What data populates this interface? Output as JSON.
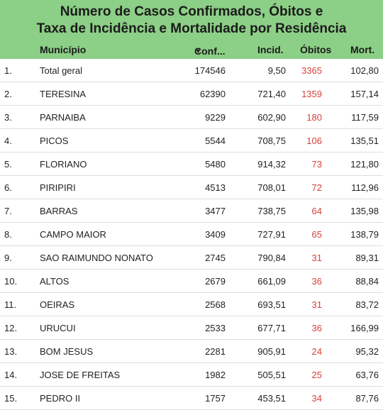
{
  "header": {
    "title_line1": "Número de Casos Confirmados, Óbitos e",
    "title_line2": "Taxa de Incidência e Mortalidade por Residência"
  },
  "columns": {
    "municipio": "Município",
    "confirmados": "Conf...",
    "incidencia": "Incid.",
    "obitos": "Óbitos",
    "mortalidade": "Mort."
  },
  "colors": {
    "header_bg": "#8ccf86",
    "obitos_text": "#d9403a"
  },
  "rows": [
    {
      "rank": "1.",
      "municipio": "Total geral",
      "confirmados": "174546",
      "incidencia": "9,50",
      "obitos": "3365",
      "mortalidade": "102,80"
    },
    {
      "rank": "2.",
      "municipio": "TERESINA",
      "confirmados": "62390",
      "incidencia": "721,40",
      "obitos": "1359",
      "mortalidade": "157,14"
    },
    {
      "rank": "3.",
      "municipio": "PARNAIBA",
      "confirmados": "9229",
      "incidencia": "602,90",
      "obitos": "180",
      "mortalidade": "117,59"
    },
    {
      "rank": "4.",
      "municipio": "PICOS",
      "confirmados": "5544",
      "incidencia": "708,75",
      "obitos": "106",
      "mortalidade": "135,51"
    },
    {
      "rank": "5.",
      "municipio": "FLORIANO",
      "confirmados": "5480",
      "incidencia": "914,32",
      "obitos": "73",
      "mortalidade": "121,80"
    },
    {
      "rank": "6.",
      "municipio": "PIRIPIRI",
      "confirmados": "4513",
      "incidencia": "708,01",
      "obitos": "72",
      "mortalidade": "112,96"
    },
    {
      "rank": "7.",
      "municipio": "BARRAS",
      "confirmados": "3477",
      "incidencia": "738,75",
      "obitos": "64",
      "mortalidade": "135,98"
    },
    {
      "rank": "8.",
      "municipio": "CAMPO MAIOR",
      "confirmados": "3409",
      "incidencia": "727,91",
      "obitos": "65",
      "mortalidade": "138,79"
    },
    {
      "rank": "9.",
      "municipio": "SAO RAIMUNDO NONATO",
      "confirmados": "2745",
      "incidencia": "790,84",
      "obitos": "31",
      "mortalidade": "89,31"
    },
    {
      "rank": "10.",
      "municipio": "ALTOS",
      "confirmados": "2679",
      "incidencia": "661,09",
      "obitos": "36",
      "mortalidade": "88,84"
    },
    {
      "rank": "11.",
      "municipio": "OEIRAS",
      "confirmados": "2568",
      "incidencia": "693,51",
      "obitos": "31",
      "mortalidade": "83,72"
    },
    {
      "rank": "12.",
      "municipio": "URUCUI",
      "confirmados": "2533",
      "incidencia": "677,71",
      "obitos": "36",
      "mortalidade": "166,99"
    },
    {
      "rank": "13.",
      "municipio": "BOM JESUS",
      "confirmados": "2281",
      "incidencia": "905,91",
      "obitos": "24",
      "mortalidade": "95,32"
    },
    {
      "rank": "14.",
      "municipio": "JOSE DE FREITAS",
      "confirmados": "1982",
      "incidencia": "505,51",
      "obitos": "25",
      "mortalidade": "63,76"
    },
    {
      "rank": "15.",
      "municipio": "PEDRO II",
      "confirmados": "1757",
      "incidencia": "453,51",
      "obitos": "34",
      "mortalidade": "87,76"
    }
  ]
}
